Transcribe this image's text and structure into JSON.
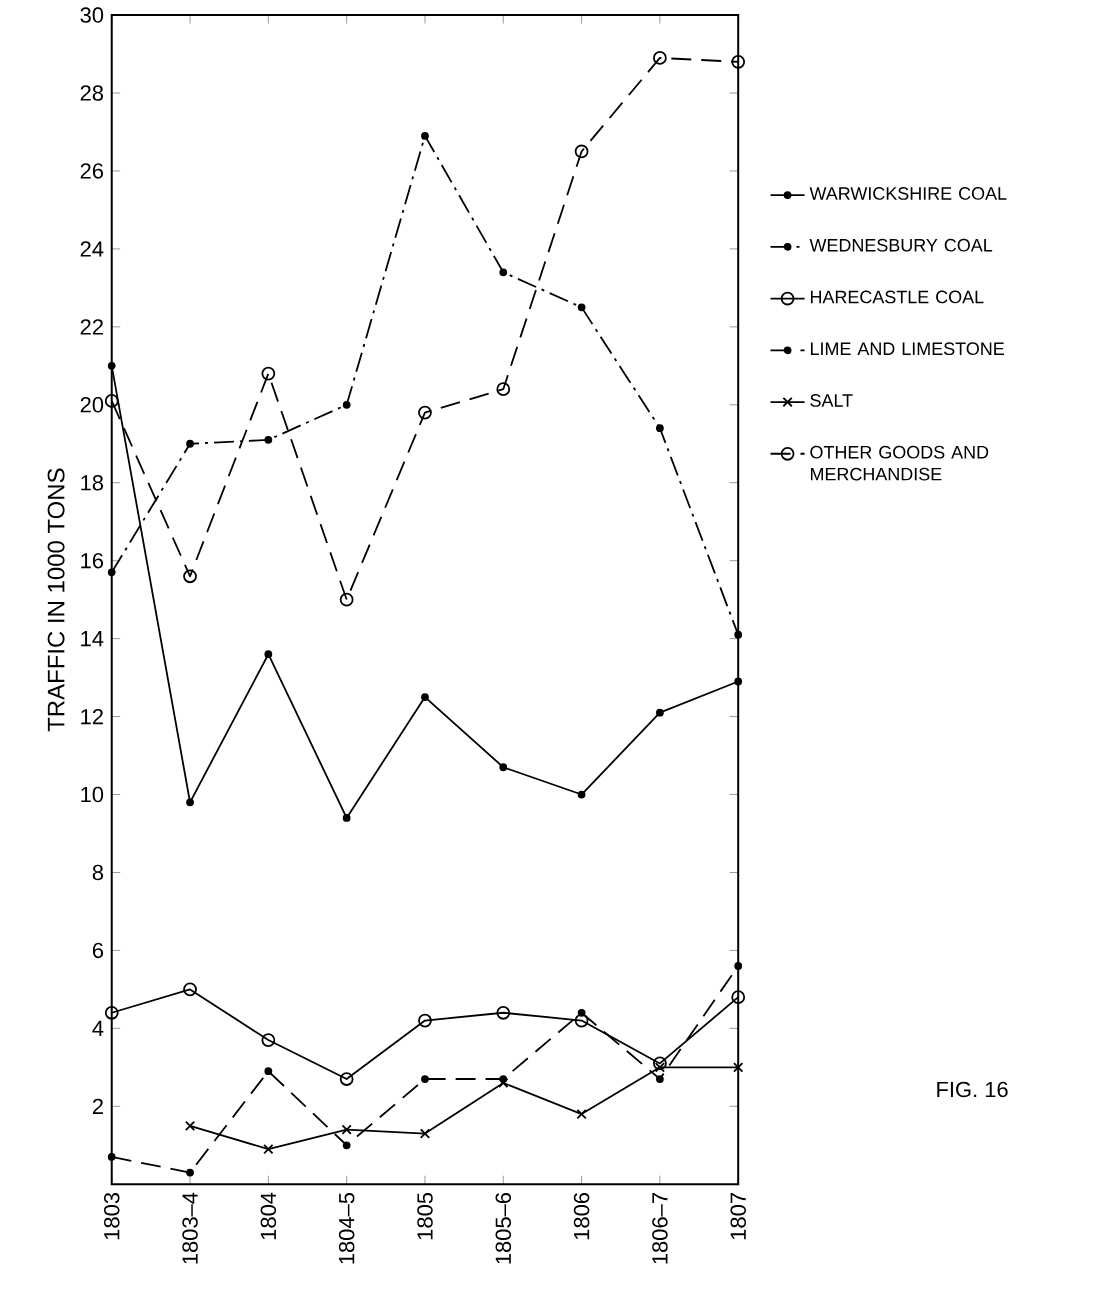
{
  "chart_data": {
    "type": "line",
    "ylabel": "TRAFFIC IN 1000 TONS",
    "categories": [
      "1803",
      "1803–4",
      "1804",
      "1804–5",
      "1805",
      "1805–6",
      "1806",
      "1806–7",
      "1807"
    ],
    "ylim": [
      0,
      30
    ],
    "yticks": [
      2,
      4,
      6,
      8,
      10,
      12,
      14,
      16,
      18,
      20,
      22,
      24,
      26,
      28,
      30
    ],
    "legend": "right",
    "grid": false,
    "series": [
      {
        "name": "WARWICKSHIRE COAL",
        "color": "#000000",
        "line_style": "solid",
        "marker": "dot",
        "values": [
          21,
          9.8,
          13.6,
          9.4,
          12.5,
          10.7,
          10.0,
          12.1,
          12.9
        ]
      },
      {
        "name": "WEDNESBURY COAL",
        "color": "#000000",
        "line_style": "dashdot",
        "marker": "dot",
        "values": [
          15.7,
          19.0,
          19.1,
          20.0,
          26.9,
          23.4,
          22.5,
          19.4,
          14.1
        ]
      },
      {
        "name": "HARECASTLE COAL",
        "color": "#000000",
        "line_style": "solid",
        "marker": "circle",
        "values": [
          4.4,
          5.0,
          3.7,
          2.7,
          4.2,
          4.4,
          4.2,
          3.1,
          4.8
        ]
      },
      {
        "name": "LIME AND LIMESTONE",
        "color": "#000000",
        "line_style": "dashed",
        "marker": "dot",
        "values": [
          0.7,
          0.3,
          2.9,
          1.0,
          2.7,
          2.7,
          4.4,
          2.7,
          5.6
        ]
      },
      {
        "name": "SALT",
        "color": "#000000",
        "line_style": "solid",
        "marker": "cross",
        "values": [
          null,
          1.5,
          0.9,
          1.4,
          1.3,
          2.6,
          1.8,
          3.0,
          3.0
        ]
      },
      {
        "name": "OTHER GOODS AND MERCHANDISE",
        "color": "#000000",
        "line_style": "dashed",
        "marker": "circle",
        "values": [
          20.1,
          15.6,
          20.8,
          15.0,
          19.8,
          20.4,
          26.5,
          28.9,
          28.8
        ]
      }
    ],
    "annotations": [
      "FIG. 16"
    ]
  }
}
